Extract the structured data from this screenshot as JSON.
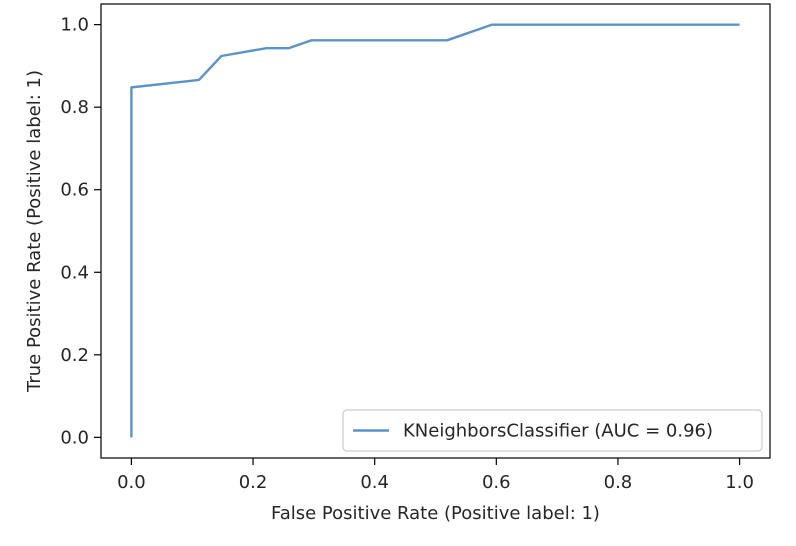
{
  "chart_data": {
    "type": "line",
    "title": "",
    "xlabel": "False Positive Rate (Positive label: 1)",
    "ylabel": "True Positive Rate (Positive label: 1)",
    "xlim": [
      -0.05,
      1.05
    ],
    "ylim": [
      -0.05,
      1.05
    ],
    "xticks": [
      0.0,
      0.2,
      0.4,
      0.6,
      0.8,
      1.0
    ],
    "xtick_labels": [
      "0.0",
      "0.2",
      "0.4",
      "0.6",
      "0.8",
      "1.0"
    ],
    "yticks": [
      0.0,
      0.2,
      0.4,
      0.6,
      0.8,
      1.0
    ],
    "ytick_labels": [
      "0.0",
      "0.2",
      "0.4",
      "0.6",
      "0.8",
      "1.0"
    ],
    "grid": false,
    "legend": {
      "placement": "lower-right"
    },
    "series": [
      {
        "name": "KNeighborsClassifier (AUC = 0.96)",
        "color": "#5b93c8",
        "x": [
          0.0,
          0.0,
          0.074,
          0.111,
          0.148,
          0.222,
          0.259,
          0.296,
          0.519,
          0.593,
          1.0
        ],
        "y": [
          0.0,
          0.848,
          0.86,
          0.866,
          0.924,
          0.943,
          0.943,
          0.962,
          0.962,
          1.0,
          1.0
        ]
      }
    ]
  }
}
